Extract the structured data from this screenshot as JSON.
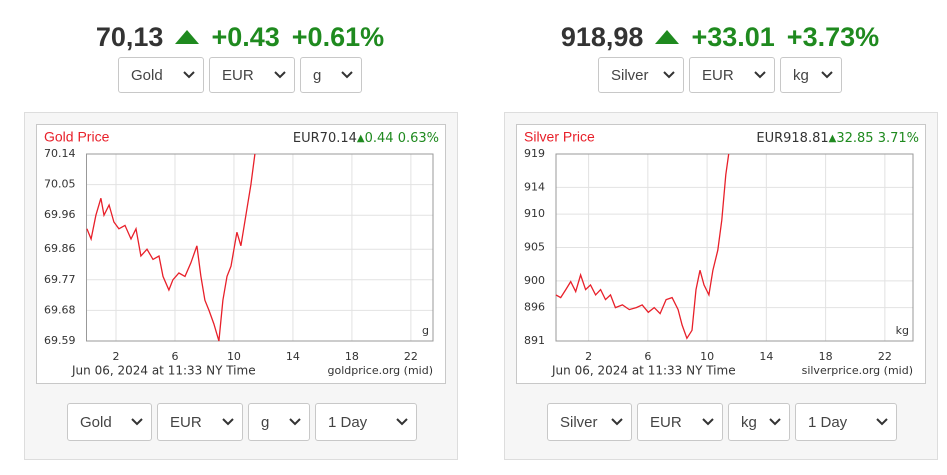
{
  "widgets": [
    {
      "price": "70,13",
      "change": "+0.43",
      "change_pct": "+0.61%",
      "selects": [
        "Gold",
        "EUR",
        "g"
      ],
      "controls": [
        "Gold",
        "EUR",
        "g",
        "1 Day"
      ]
    },
    {
      "price": "918,98",
      "change": "+33.01",
      "change_pct": "+3.73%",
      "selects": [
        "Silver",
        "EUR",
        "kg"
      ],
      "controls": [
        "Silver",
        "EUR",
        "kg",
        "1 Day"
      ]
    }
  ],
  "chart_data": [
    {
      "type": "line",
      "title": "Gold Price",
      "price": "EUR70.14",
      "change": "0.44",
      "change_pct": "0.63%",
      "unit": "g",
      "timestamp": "Jun 06, 2024 at 11:33 NY Time",
      "source": "goldprice.org (mid)",
      "color": "#e8202a",
      "x": [
        0.03,
        0.31,
        0.64,
        0.98,
        1.19,
        1.53,
        1.86,
        2.2,
        2.61,
        3.02,
        3.36,
        3.69,
        4.1,
        4.51,
        4.92,
        5.19,
        5.59,
        5.86,
        6.27,
        6.68,
        7.08,
        7.49,
        7.76,
        8.03,
        8.31,
        8.64,
        8.98,
        9.25,
        9.53,
        9.8,
        10.2,
        10.47,
        10.81,
        11.15,
        11.42
      ],
      "values": [
        69.92,
        69.89,
        69.96,
        70.01,
        69.96,
        69.99,
        69.94,
        69.92,
        69.93,
        69.89,
        69.92,
        69.84,
        69.86,
        69.83,
        69.84,
        69.78,
        69.74,
        69.77,
        69.79,
        69.78,
        69.82,
        69.87,
        69.78,
        69.71,
        69.68,
        69.64,
        69.59,
        69.71,
        69.78,
        69.81,
        69.91,
        69.87,
        69.96,
        70.05,
        70.14
      ],
      "xlim": [
        0,
        23.5
      ],
      "ylim": [
        69.59,
        70.14
      ],
      "xticks": [
        2,
        6,
        10,
        14,
        18,
        22
      ],
      "yticks": [
        70.14,
        70.05,
        69.96,
        69.86,
        69.77,
        69.68,
        69.59
      ],
      "grid": true
    },
    {
      "type": "line",
      "title": "Silver Price",
      "price": "EUR918.81",
      "change": "32.85",
      "change_pct": "3.71%",
      "unit": "kg",
      "timestamp": "Jun 06, 2024 at 11:33 NY Time",
      "source": "silverprice.org (mid)",
      "color": "#e8202a",
      "x": [
        -0.21,
        0.12,
        0.46,
        0.79,
        1.13,
        1.46,
        1.8,
        2.13,
        2.47,
        2.81,
        3.14,
        3.48,
        3.81,
        4.28,
        4.75,
        5.22,
        5.62,
        6.03,
        6.43,
        6.83,
        7.23,
        7.64,
        8.04,
        8.31,
        8.64,
        8.98,
        9.25,
        9.52,
        9.79,
        10.12,
        10.39,
        10.72,
        10.99,
        11.26,
        11.46
      ],
      "values": [
        897.9,
        897.5,
        898.7,
        899.9,
        898.4,
        900.9,
        898.7,
        899.4,
        897.9,
        898.7,
        897.2,
        897.9,
        896.0,
        896.4,
        895.7,
        896.0,
        896.4,
        895.3,
        896.0,
        895.1,
        897.2,
        897.5,
        895.7,
        893.4,
        891.4,
        892.6,
        898.7,
        901.6,
        899.4,
        897.9,
        901.6,
        904.6,
        909.1,
        915.9,
        919.0
      ],
      "xlim": [
        -0.2,
        23.9
      ],
      "ylim": [
        891,
        919
      ],
      "xticks": [
        2,
        6,
        10,
        14,
        18,
        22
      ],
      "yticks": [
        919,
        914,
        910,
        905,
        900,
        896,
        891
      ],
      "grid": true
    }
  ]
}
